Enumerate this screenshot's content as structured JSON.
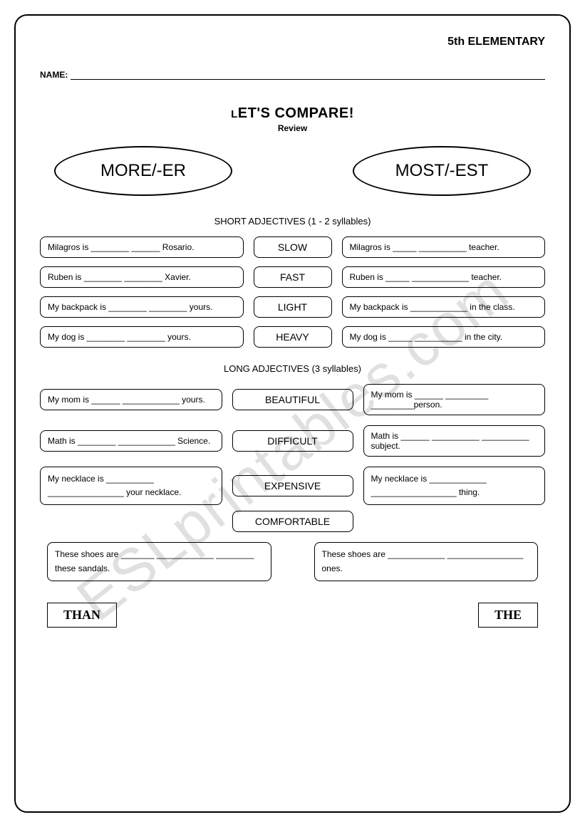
{
  "grade": "5th ELEMENTARY",
  "name_label": "NAME:",
  "title_prefix": "L",
  "title_rest": "ET'S COMPARE!",
  "subtitle": "Review",
  "oval_left": "MORE/-ER",
  "oval_right": "MOST/-EST",
  "short_heading": "SHORT ADJECTIVES (1 - 2 syllables)",
  "short": {
    "adj": [
      "SLOW",
      "FAST",
      "LIGHT",
      "HEAVY"
    ],
    "left": [
      "Milagros is ________ ______ Rosario.",
      "Ruben is ________ ________ Xavier.",
      "My backpack is ________ ________ yours.",
      "My dog is ________ ________ yours."
    ],
    "right": [
      "Milagros is _____ __________ teacher.",
      "Ruben is _____ ____________ teacher.",
      "My backpack is ____________ in the class.",
      "My dog is _____ __________ in the city."
    ]
  },
  "long_heading": "LONG ADJECTIVES (3 syllables)",
  "long": {
    "adj": [
      "BEAUTIFUL",
      "DIFFICULT",
      "EXPENSIVE",
      "COMFORTABLE"
    ],
    "left": [
      "My mom is ______ ____________ yours.",
      "Math is ________ ____________ Science.",
      "My necklace is __________ ________________ your necklace.",
      "These shoes are _______ ____________ ________ these sandals."
    ],
    "right": [
      "My mom is ______ _________ _________person.",
      "Math is ______ __________ __________ subject.",
      "My necklace is ____________ __________________ thing.",
      "These shoes are ____________ ________________ ones."
    ]
  },
  "footer_left": "THAN",
  "footer_right": "THE",
  "watermark": "ESLprintables.com"
}
